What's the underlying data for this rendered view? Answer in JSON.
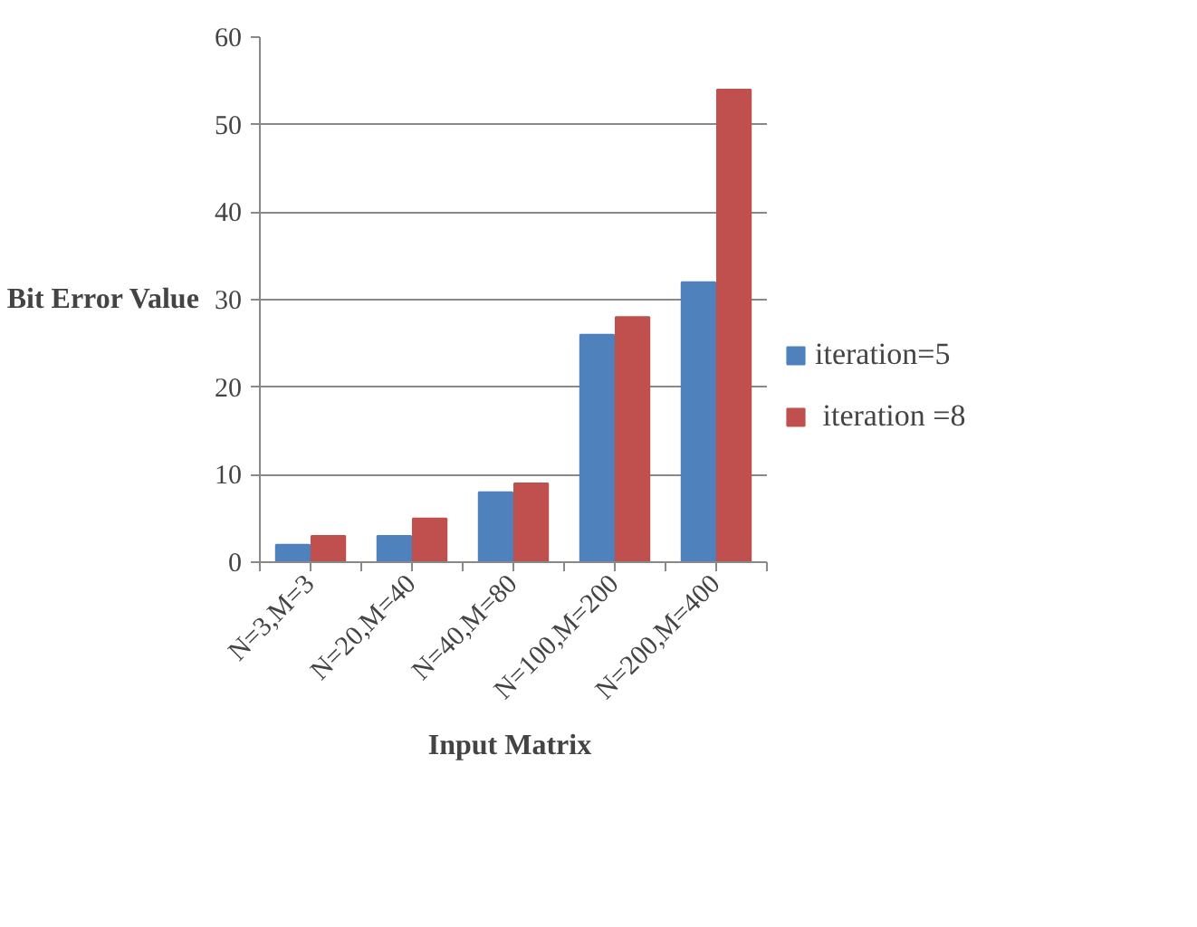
{
  "chart_data": {
    "type": "bar",
    "xlabel": "Input  Matrix",
    "ylabel": "Bit Error Value",
    "categories": [
      "N=3,M=3",
      "N=20,M=40",
      "N=40,M=80",
      "N=100,M=200",
      "N=200,M=400"
    ],
    "series": [
      {
        "name": "iteration=5",
        "color": "#4f81bd",
        "values": [
          2,
          3,
          8,
          26,
          32
        ]
      },
      {
        "name": " iteration =8",
        "color": "#c0504d",
        "values": [
          3,
          5,
          9,
          28,
          54
        ]
      }
    ],
    "ylim": [
      0,
      60
    ],
    "yticks": [
      0,
      10,
      20,
      30,
      40,
      50,
      60
    ],
    "grid": "y",
    "legend": "right"
  }
}
